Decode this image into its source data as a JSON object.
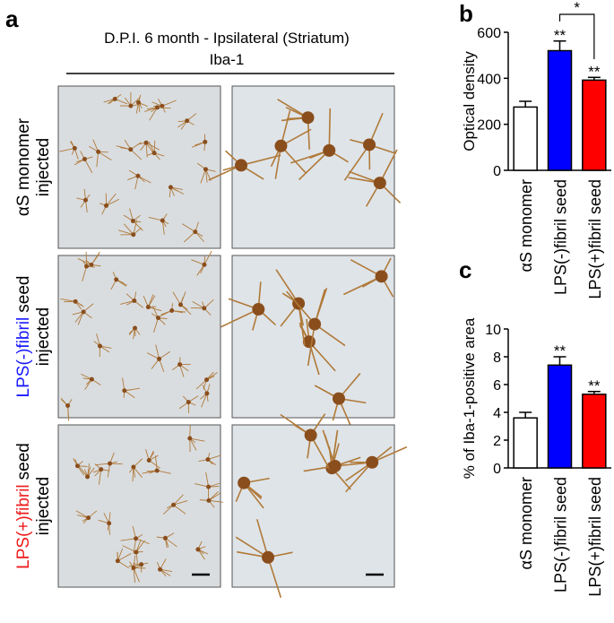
{
  "panel_a": {
    "label": "a",
    "title": "D.P.I. 6 month - Ipsilateral (Striatum)",
    "subtitle": "Iba-1",
    "rows": [
      {
        "parts": [
          {
            "text": "αS monomer",
            "color": "#000000"
          }
        ],
        "line2": "injected"
      },
      {
        "parts": [
          {
            "text": "LPS(-)fibril",
            "color": "#1a1aff"
          },
          {
            "text": "seed",
            "color": "#000000"
          }
        ],
        "line2": "injected"
      },
      {
        "parts": [
          {
            "text": "LPS(+)fibril",
            "color": "#ee1c1c"
          },
          {
            "text": "seed",
            "color": "#000000"
          }
        ],
        "line2": "injected"
      }
    ]
  },
  "chart_data": [
    {
      "type": "bar",
      "label": "b",
      "ylabel": "Optical density",
      "categories": [
        "αS monomer",
        "LPS(-)fibril seed",
        "LPS(+)fibril seed"
      ],
      "category_colors": [
        "#000000",
        "#1a1aff",
        "#ee1c1c"
      ],
      "values": [
        275,
        520,
        392
      ],
      "errors": [
        25,
        42,
        12
      ],
      "colors": [
        "#ffffff",
        "#0000ff",
        "#ff0000"
      ],
      "significance": [
        null,
        "**",
        "**"
      ],
      "bracket_label": "*",
      "ylim": [
        0,
        600
      ],
      "yticks": [
        0,
        200,
        400,
        600
      ]
    },
    {
      "type": "bar",
      "label": "c",
      "ylabel": "% of Iba-1-positive area",
      "categories": [
        "αS monomer",
        "LPS(-)fibril seed",
        "LPS(+)fibril seed"
      ],
      "category_colors": [
        "#000000",
        "#1a1aff",
        "#ee1c1c"
      ],
      "values": [
        3.6,
        7.4,
        5.3
      ],
      "errors": [
        0.4,
        0.6,
        0.2
      ],
      "colors": [
        "#ffffff",
        "#0000ff",
        "#ff0000"
      ],
      "significance": [
        null,
        "**",
        "**"
      ],
      "ylim": [
        0,
        10
      ],
      "yticks": [
        0,
        2,
        4,
        6,
        8,
        10
      ]
    }
  ]
}
